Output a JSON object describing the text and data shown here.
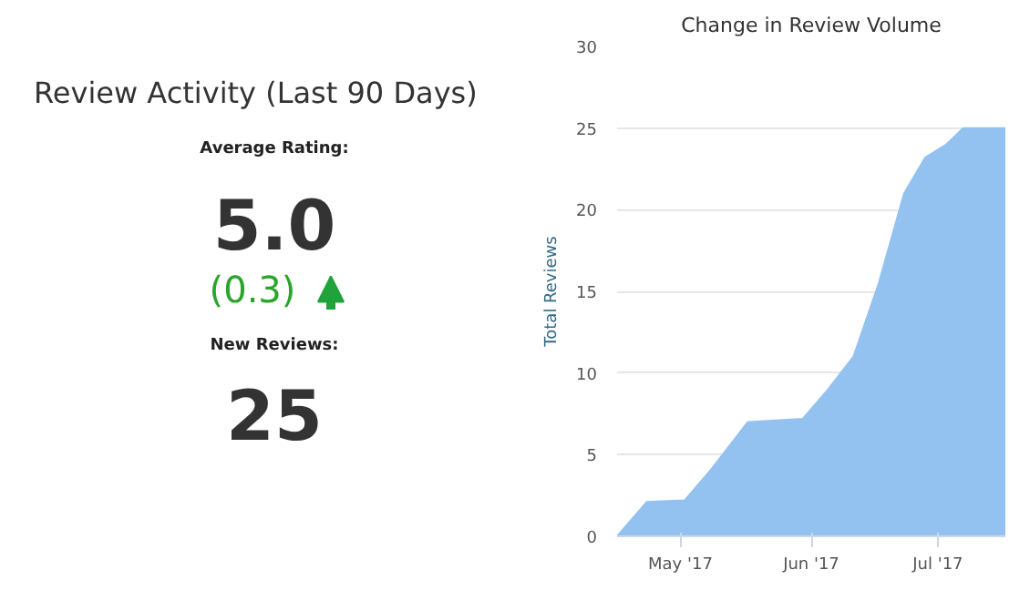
{
  "chart_data": [
    {
      "type": "other",
      "title": "Review Activity (Last 90 Days)",
      "annotations": [
        "Average Rating:",
        "5.0",
        "(0.3)",
        "New Reviews:",
        "25"
      ]
    },
    {
      "type": "area",
      "title": "Change in Review Volume",
      "ylabel": "Total Reviews",
      "color": "#94c2f0",
      "x": [
        "2017-04-16",
        "2017-04-23",
        "2017-05-02",
        "2017-05-08",
        "2017-05-17",
        "2017-05-30",
        "2017-06-05",
        "2017-06-11",
        "2017-06-17",
        "2017-06-23",
        "2017-06-28",
        "2017-07-03",
        "2017-07-07",
        "2017-07-17"
      ],
      "values": [
        0,
        2.1,
        2.2,
        4,
        7,
        7.2,
        9,
        11,
        15.5,
        21,
        23.2,
        24,
        25,
        25
      ],
      "xlim": [
        "2017-04-16",
        "2017-07-17"
      ],
      "xticks": [
        {
          "value": "2017-05-01",
          "label": "May '17"
        },
        {
          "value": "2017-06-01",
          "label": "Jun '17"
        },
        {
          "value": "2017-07-01",
          "label": "Jul '17"
        }
      ],
      "ylim": [
        0,
        30
      ],
      "yticks": [
        0,
        5,
        10,
        15,
        20,
        25,
        30
      ],
      "grid": "y"
    }
  ]
}
